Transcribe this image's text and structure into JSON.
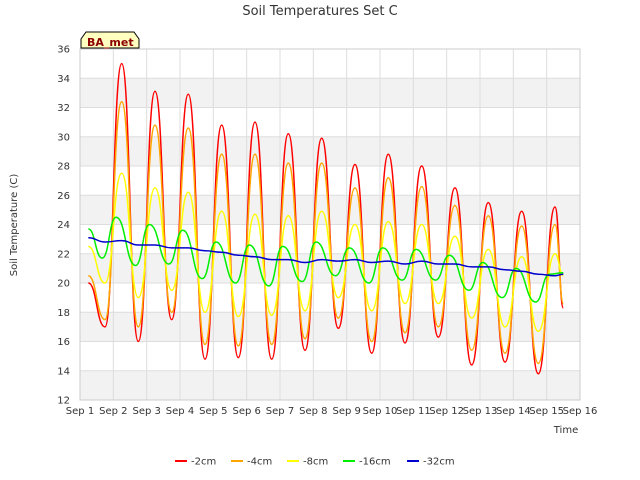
{
  "chart_data": {
    "type": "line",
    "title": "Soil Temperatures Set C",
    "xlabel": "Time",
    "ylabel": "Soil Temperature (C)",
    "badge": "BA_met",
    "x_tick_labels": [
      "Sep 1",
      "Sep 2",
      "Sep 3",
      "Sep 4",
      "Sep 5",
      "Sep 6",
      "Sep 7",
      "Sep 8",
      "Sep 9",
      "Sep 10",
      "Sep 11",
      "Sep 12",
      "Sep 13",
      "Sep 14",
      "Sep 15",
      "Sep 16"
    ],
    "xlim": [
      "Sep 1",
      "Sep 16"
    ],
    "y_ticks": [
      12,
      14,
      16,
      18,
      20,
      22,
      24,
      26,
      28,
      30,
      32,
      34,
      36
    ],
    "ylim": [
      12,
      36
    ],
    "grid": true,
    "legend_position": "bottom",
    "series": [
      {
        "name": "-2cm",
        "color": "#ff0000",
        "x": [
          "Sep 1 06:00",
          "Sep 1 18:00",
          "Sep 2 06:00",
          "Sep 2 18:00",
          "Sep 3 06:00",
          "Sep 3 18:00",
          "Sep 4 06:00",
          "Sep 4 18:00",
          "Sep 5 06:00",
          "Sep 5 18:00",
          "Sep 6 06:00",
          "Sep 6 18:00",
          "Sep 7 06:00",
          "Sep 7 18:00",
          "Sep 8 06:00",
          "Sep 8 18:00",
          "Sep 9 06:00",
          "Sep 9 18:00",
          "Sep 10 06:00",
          "Sep 10 18:00",
          "Sep 11 06:00",
          "Sep 11 18:00",
          "Sep 12 06:00",
          "Sep 12 18:00",
          "Sep 13 06:00",
          "Sep 13 18:00",
          "Sep 14 06:00",
          "Sep 14 18:00",
          "Sep 15 06:00",
          "Sep 15 12:00"
        ],
        "values": [
          20.0,
          17.0,
          35.0,
          16.0,
          33.1,
          17.5,
          32.9,
          14.8,
          30.8,
          14.9,
          31.0,
          14.8,
          30.2,
          15.4,
          29.9,
          16.9,
          28.1,
          15.2,
          28.8,
          15.9,
          28.0,
          16.3,
          26.5,
          14.4,
          25.5,
          14.6,
          24.9,
          13.8,
          25.2,
          18.3
        ]
      },
      {
        "name": "-4cm",
        "color": "#ffa500",
        "x": [
          "Sep 1 06:00",
          "Sep 1 18:00",
          "Sep 2 06:00",
          "Sep 2 18:00",
          "Sep 3 06:00",
          "Sep 3 18:00",
          "Sep 4 06:00",
          "Sep 4 18:00",
          "Sep 5 06:00",
          "Sep 5 18:00",
          "Sep 6 06:00",
          "Sep 6 18:00",
          "Sep 7 06:00",
          "Sep 7 18:00",
          "Sep 8 06:00",
          "Sep 8 18:00",
          "Sep 9 06:00",
          "Sep 9 18:00",
          "Sep 10 06:00",
          "Sep 10 18:00",
          "Sep 11 06:00",
          "Sep 11 18:00",
          "Sep 12 06:00",
          "Sep 12 18:00",
          "Sep 13 06:00",
          "Sep 13 18:00",
          "Sep 14 06:00",
          "Sep 14 18:00",
          "Sep 15 06:00",
          "Sep 15 12:00"
        ],
        "values": [
          20.5,
          17.5,
          32.4,
          17.0,
          30.8,
          18.0,
          30.6,
          15.8,
          28.8,
          15.7,
          28.8,
          15.8,
          28.2,
          16.2,
          28.2,
          17.6,
          26.5,
          16.0,
          27.2,
          16.6,
          26.6,
          17.0,
          25.3,
          15.4,
          24.6,
          15.2,
          23.9,
          14.5,
          24.0,
          18.6
        ]
      },
      {
        "name": "-8cm",
        "color": "#ffff00",
        "x": [
          "Sep 1 06:00",
          "Sep 1 18:00",
          "Sep 2 06:00",
          "Sep 2 18:00",
          "Sep 3 06:00",
          "Sep 3 18:00",
          "Sep 4 06:00",
          "Sep 4 18:00",
          "Sep 5 06:00",
          "Sep 5 18:00",
          "Sep 6 06:00",
          "Sep 6 18:00",
          "Sep 7 06:00",
          "Sep 7 18:00",
          "Sep 8 06:00",
          "Sep 8 18:00",
          "Sep 9 06:00",
          "Sep 9 18:00",
          "Sep 10 06:00",
          "Sep 10 18:00",
          "Sep 11 06:00",
          "Sep 11 18:00",
          "Sep 12 06:00",
          "Sep 12 18:00",
          "Sep 13 06:00",
          "Sep 13 18:00",
          "Sep 14 06:00",
          "Sep 14 18:00",
          "Sep 15 06:00",
          "Sep 15 12:00"
        ],
        "values": [
          22.5,
          20.0,
          27.5,
          19.0,
          26.5,
          19.5,
          26.2,
          18.0,
          24.9,
          17.7,
          24.7,
          17.8,
          24.6,
          18.1,
          24.9,
          19.0,
          24.0,
          18.1,
          24.2,
          18.6,
          24.0,
          18.6,
          23.2,
          17.6,
          22.3,
          17.0,
          21.8,
          16.7,
          22.0,
          20.5
        ]
      },
      {
        "name": "-16cm",
        "color": "#00ee00",
        "x": [
          "Sep 1 06:00",
          "Sep 1 16:00",
          "Sep 2 02:00",
          "Sep 2 16:00",
          "Sep 3 02:00",
          "Sep 3 16:00",
          "Sep 4 02:00",
          "Sep 4 16:00",
          "Sep 5 02:00",
          "Sep 5 16:00",
          "Sep 6 02:00",
          "Sep 6 16:00",
          "Sep 7 02:00",
          "Sep 7 16:00",
          "Sep 8 02:00",
          "Sep 8 16:00",
          "Sep 9 02:00",
          "Sep 9 16:00",
          "Sep 10 02:00",
          "Sep 10 16:00",
          "Sep 11 02:00",
          "Sep 11 16:00",
          "Sep 12 02:00",
          "Sep 12 16:00",
          "Sep 13 02:00",
          "Sep 13 16:00",
          "Sep 14 02:00",
          "Sep 14 16:00",
          "Sep 15 02:00",
          "Sep 15 12:00"
        ],
        "values": [
          23.7,
          21.7,
          24.5,
          21.2,
          24.0,
          21.3,
          23.6,
          20.3,
          22.8,
          20.0,
          22.6,
          19.8,
          22.5,
          20.1,
          22.8,
          20.5,
          22.4,
          20.0,
          22.4,
          20.2,
          22.3,
          20.2,
          21.9,
          19.5,
          21.4,
          19.0,
          21.0,
          18.7,
          20.6,
          20.7
        ]
      },
      {
        "name": "-32cm",
        "color": "#0000cc",
        "x": [
          "Sep 1 06:00",
          "Sep 1 18:00",
          "Sep 2 06:00",
          "Sep 2 18:00",
          "Sep 3 06:00",
          "Sep 3 18:00",
          "Sep 4 06:00",
          "Sep 4 18:00",
          "Sep 5 06:00",
          "Sep 5 18:00",
          "Sep 6 06:00",
          "Sep 6 18:00",
          "Sep 7 06:00",
          "Sep 7 18:00",
          "Sep 8 06:00",
          "Sep 8 18:00",
          "Sep 9 06:00",
          "Sep 9 18:00",
          "Sep 10 06:00",
          "Sep 10 18:00",
          "Sep 11 06:00",
          "Sep 11 18:00",
          "Sep 12 06:00",
          "Sep 12 18:00",
          "Sep 13 06:00",
          "Sep 13 18:00",
          "Sep 14 06:00",
          "Sep 14 18:00",
          "Sep 15 06:00",
          "Sep 15 12:00"
        ],
        "values": [
          23.1,
          22.8,
          22.9,
          22.6,
          22.6,
          22.4,
          22.4,
          22.2,
          22.1,
          21.9,
          21.8,
          21.6,
          21.6,
          21.4,
          21.6,
          21.5,
          21.6,
          21.4,
          21.5,
          21.3,
          21.5,
          21.3,
          21.3,
          21.1,
          21.1,
          20.9,
          20.8,
          20.6,
          20.5,
          20.6
        ]
      }
    ]
  }
}
